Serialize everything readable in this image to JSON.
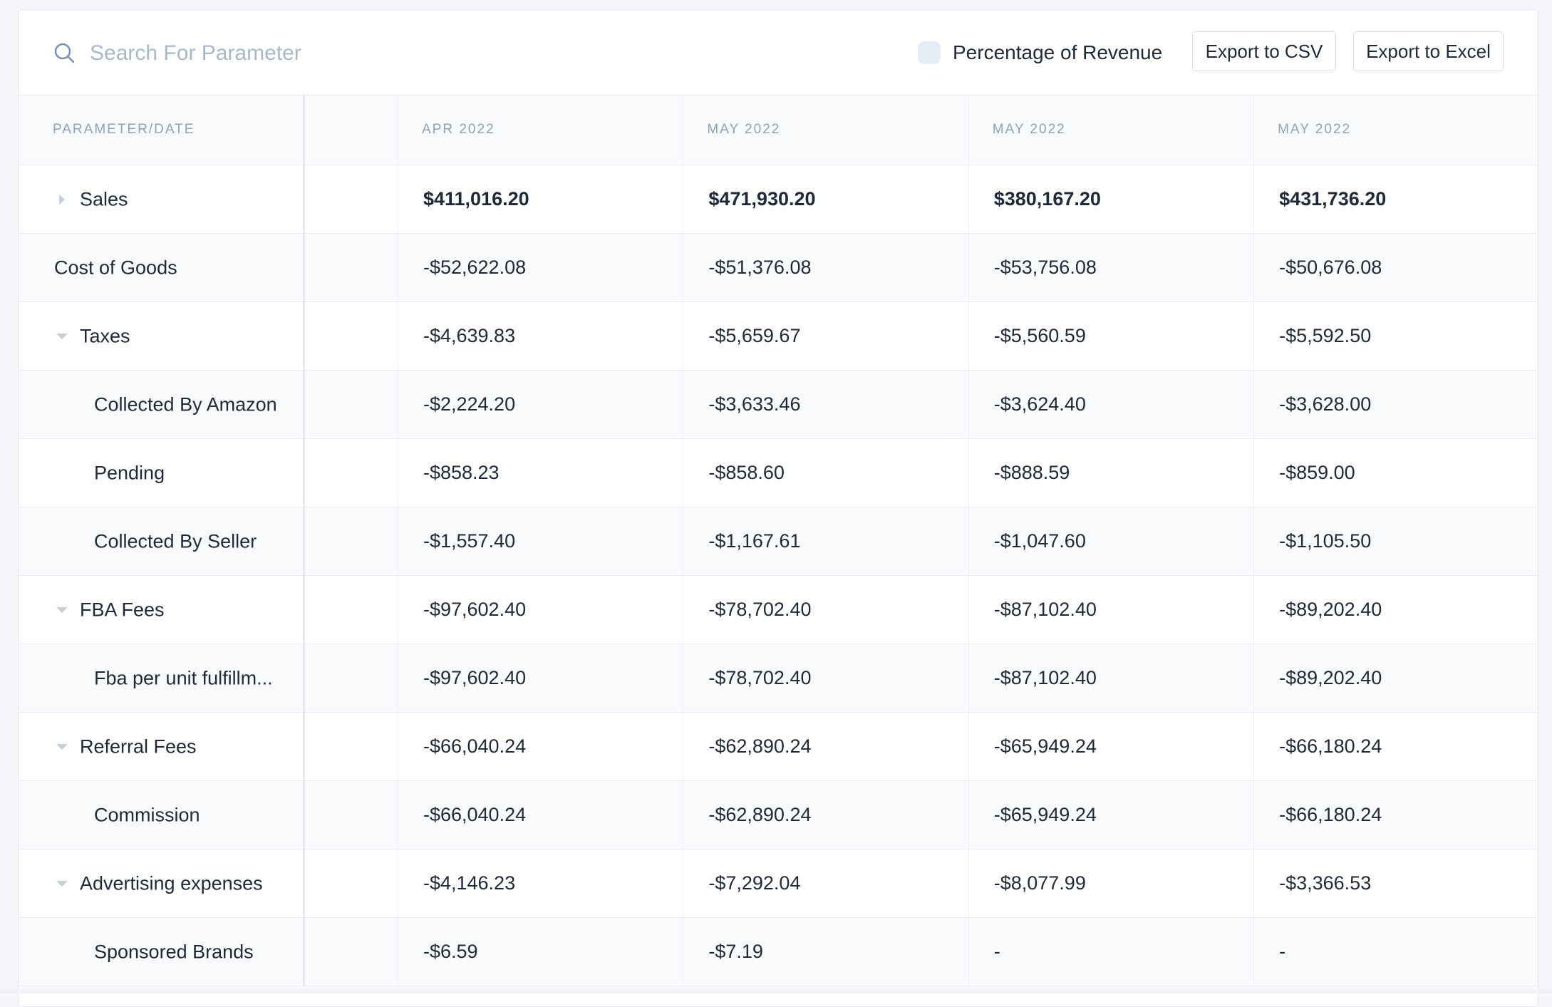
{
  "search": {
    "placeholder": "Search For Parameter",
    "icon": "search-icon"
  },
  "toolbar": {
    "toggle_label": "Percentage of Revenue",
    "export_csv_label": "Export to CSV",
    "export_excel_label": "Export to Excel"
  },
  "table": {
    "headers": [
      "PARAMETER/DATE",
      "",
      "APR 2022",
      "MAY 2022",
      "MAY 2022",
      "MAY 2022"
    ],
    "rows": [
      {
        "label": "Sales",
        "caret": "right",
        "bold": true,
        "values": [
          "$411,016.20",
          "$471,930.20",
          "$380,167.20",
          "$431,736.20"
        ]
      },
      {
        "label": "Cost of Goods",
        "caret": "none",
        "values": [
          "-$52,622.08",
          "-$51,376.08",
          "-$53,756.08",
          "-$50,676.08"
        ]
      },
      {
        "label": "Taxes",
        "caret": "down",
        "values": [
          "-$4,639.83",
          "-$5,659.67",
          "-$5,560.59",
          "-$5,592.50"
        ]
      },
      {
        "label": "Collected By Amazon",
        "caret": "child",
        "values": [
          "-$2,224.20",
          "-$3,633.46",
          "-$3,624.40",
          "-$3,628.00"
        ]
      },
      {
        "label": "Pending",
        "caret": "child",
        "values": [
          "-$858.23",
          "-$858.60",
          "-$888.59",
          "-$859.00"
        ]
      },
      {
        "label": "Collected By Seller",
        "caret": "child",
        "values": [
          "-$1,557.40",
          "-$1,167.61",
          "-$1,047.60",
          "-$1,105.50"
        ]
      },
      {
        "label": "FBA Fees",
        "caret": "down",
        "values": [
          "-$97,602.40",
          "-$78,702.40",
          "-$87,102.40",
          "-$89,202.40"
        ]
      },
      {
        "label": "Fba per unit fulfillm...",
        "caret": "child",
        "values": [
          "-$97,602.40",
          "-$78,702.40",
          "-$87,102.40",
          "-$89,202.40"
        ]
      },
      {
        "label": "Referral Fees",
        "caret": "down",
        "values": [
          "-$66,040.24",
          "-$62,890.24",
          "-$65,949.24",
          "-$66,180.24"
        ]
      },
      {
        "label": "Commission",
        "caret": "child",
        "values": [
          "-$66,040.24",
          "-$62,890.24",
          "-$65,949.24",
          "-$66,180.24"
        ]
      },
      {
        "label": "Advertising expenses",
        "caret": "down",
        "values": [
          "-$4,146.23",
          "-$7,292.04",
          "-$8,077.99",
          "-$3,366.53"
        ]
      },
      {
        "label": "Sponsored Brands",
        "caret": "child",
        "values": [
          "-$6.59",
          "-$7.19",
          "-",
          "-"
        ]
      }
    ]
  },
  "colors": {
    "accent_muted": "#8ea2b8",
    "placeholder": "#a9b8c9",
    "caret": "#c4d0dd",
    "toggle": "#e4ecf6"
  }
}
